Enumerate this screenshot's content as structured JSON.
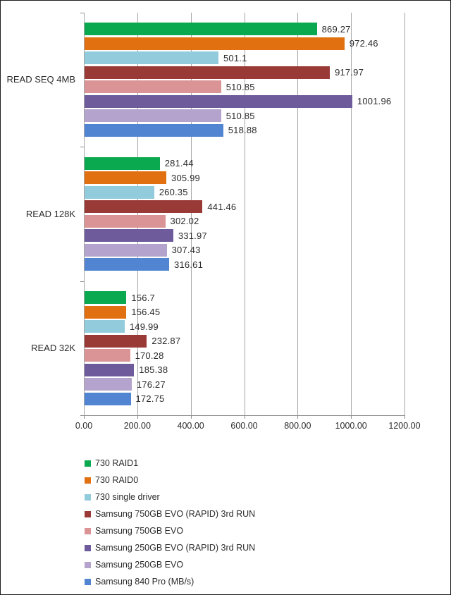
{
  "chart_data": {
    "type": "bar",
    "orientation": "horizontal",
    "categories": [
      "READ SEQ 4MB",
      "READ 128K",
      "READ 32K"
    ],
    "series": [
      {
        "name": "730 RAID1",
        "color": "#0aa950",
        "values": [
          869.27,
          281.44,
          156.7
        ]
      },
      {
        "name": "730 RAID0",
        "color": "#e17010",
        "values": [
          972.46,
          305.99,
          156.45
        ]
      },
      {
        "name": "730 single driver",
        "color": "#92cbdc",
        "values": [
          501.1,
          260.35,
          149.99
        ]
      },
      {
        "name": "Samsung 750GB EVO (RAPID) 3rd RUN",
        "color": "#993a37",
        "values": [
          917.97,
          441.46,
          232.87
        ]
      },
      {
        "name": "Samsung 750GB EVO",
        "color": "#db9496",
        "values": [
          510.85,
          302.02,
          170.28
        ]
      },
      {
        "name": "Samsung 250GB EVO (RAPID) 3rd RUN",
        "color": "#6d5b9c",
        "values": [
          1001.96,
          331.97,
          185.38
        ]
      },
      {
        "name": "Samsung 250GB EVO",
        "color": "#b3a3cd",
        "values": [
          510.85,
          307.43,
          176.27
        ]
      },
      {
        "name": "Samsung 840 Pro (MB/s)",
        "color": "#5185d1",
        "values": [
          518.88,
          316.61,
          172.75
        ]
      }
    ],
    "x_ticks": [
      "0.00",
      "200.00",
      "400.00",
      "600.00",
      "800.00",
      "1000.00",
      "1200.00"
    ],
    "xlim": [
      0,
      1200
    ],
    "grid": true,
    "value_labels": true,
    "legend_position": "bottom-left",
    "title": "",
    "xlabel": "",
    "ylabel": ""
  },
  "ui_colors": {
    "background": "#ffffff",
    "frame_border": "#1e1e1e",
    "gridline": "#a6a6a6",
    "axis": "#8e8e8e",
    "text": "#2b2b2b"
  }
}
